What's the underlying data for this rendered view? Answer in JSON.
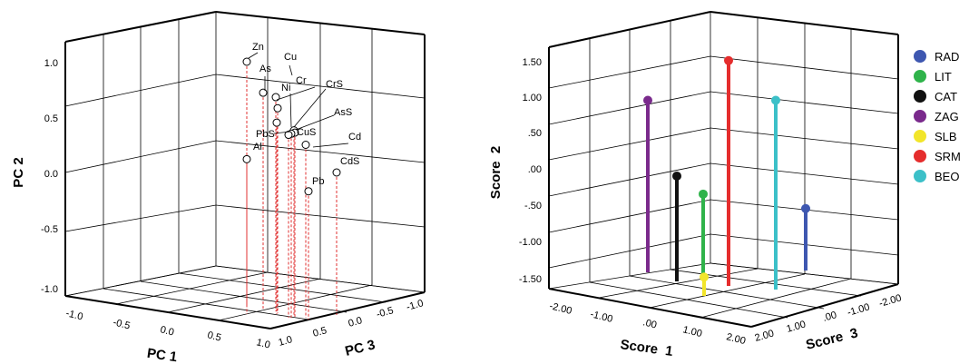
{
  "chart_data": [
    {
      "type": "scatter",
      "subtype": "3d-scatter-with-drop-lines",
      "xlabel": "PC 1",
      "ylabel": "PC 2",
      "zlabel": "PC 3",
      "x_ticks": [
        "-1.0",
        "-0.5",
        "0.0",
        "0.5",
        "1.0"
      ],
      "y_ticks": [
        "1.0",
        "0.5",
        "0.0",
        "-0.5",
        "-1.0"
      ],
      "z_ticks": [
        "1.0",
        "0.5",
        "0.0",
        "-0.5",
        "-1.0"
      ],
      "xlim": [
        -1,
        1
      ],
      "ylim": [
        -1,
        1
      ],
      "zlim": [
        -1,
        1
      ],
      "drop_line_color": "#e03030",
      "points": [
        {
          "label": "Zn",
          "pc2": 1.0
        },
        {
          "label": "As",
          "pc2": 0.72
        },
        {
          "label": "Cu",
          "pc2": 0.68
        },
        {
          "label": "Ni",
          "pc2": 0.58
        },
        {
          "label": "Cr",
          "pc2": 0.45
        },
        {
          "label": "CrS",
          "pc2": 0.38
        },
        {
          "label": "AsS",
          "pc2": 0.36
        },
        {
          "label": "CuS",
          "pc2": 0.35
        },
        {
          "label": "PbS",
          "pc2": 0.34
        },
        {
          "label": "Cd",
          "pc2": 0.25
        },
        {
          "label": "Al",
          "pc2": 0.12
        },
        {
          "label": "CdS",
          "pc2": 0.0
        },
        {
          "label": "Pb",
          "pc2": -0.17
        }
      ]
    },
    {
      "type": "bar",
      "subtype": "3d-stem",
      "xlabel": "Score  1",
      "ylabel": "Score  2",
      "zlabel": "Score  3",
      "x_ticks": [
        "-2.00",
        "-1.00",
        ".00",
        "1.00",
        "2.00"
      ],
      "y_ticks": [
        "1.50",
        "1.00",
        ".50",
        ".00",
        "-.50",
        "-1.00",
        "-1.50"
      ],
      "z_ticks": [
        "2.00",
        "1.00",
        ".00",
        "-1.00",
        "-2.00"
      ],
      "ylim": [
        -1.5,
        1.5
      ],
      "series": [
        {
          "name": "RAD",
          "score2": -0.55,
          "color": "#3e57b0"
        },
        {
          "name": "LIT",
          "score2": -0.35,
          "color": "#2fb34a"
        },
        {
          "name": "CAT",
          "score2": -0.1,
          "color": "#111111"
        },
        {
          "name": "ZAG",
          "score2": 0.95,
          "color": "#7a2a8c"
        },
        {
          "name": "SLB",
          "score2": -1.5,
          "color": "#f2e52a"
        },
        {
          "name": "SRM",
          "score2": 1.5,
          "color": "#e52d2d"
        },
        {
          "name": "BEO",
          "score2": 0.95,
          "color": "#3cc0c8"
        }
      ]
    }
  ]
}
